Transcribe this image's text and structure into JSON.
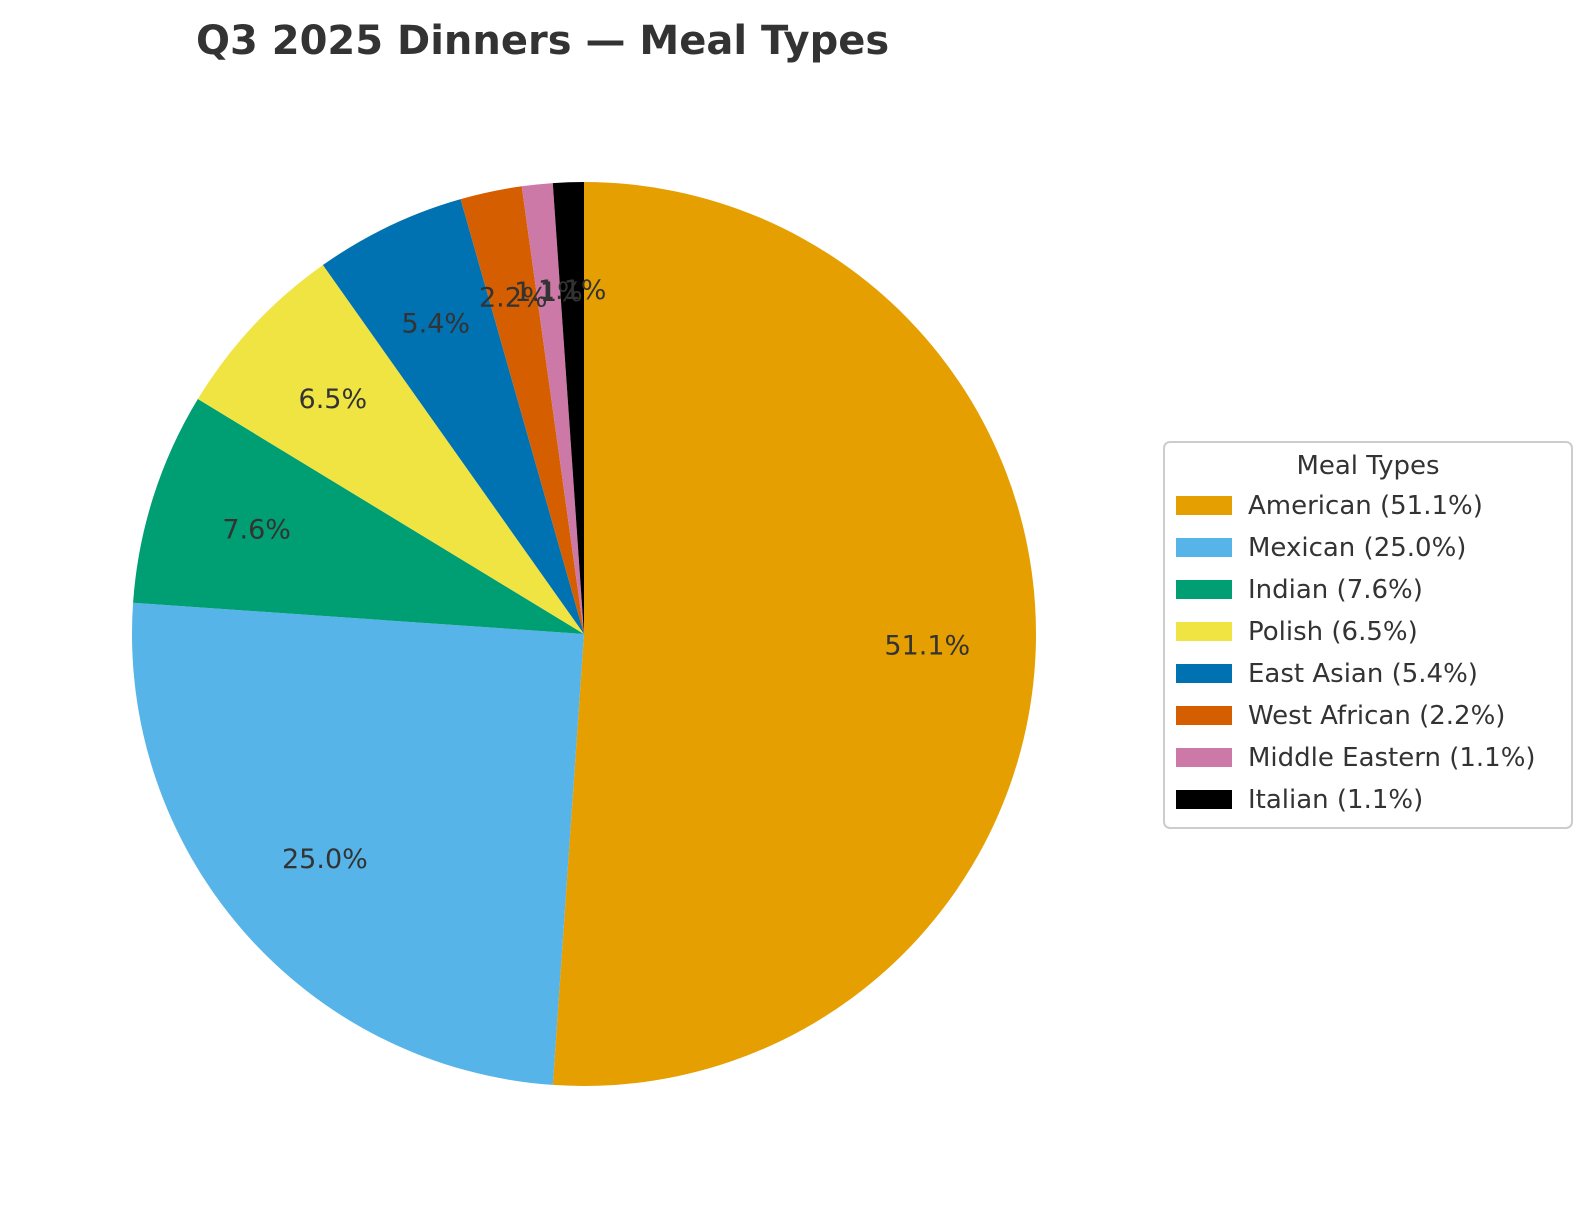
{
  "chart_data": {
    "type": "pie",
    "title": "Q3 2025 Dinners — Meal Types",
    "start_angle_deg": 90,
    "direction": "clockwise",
    "categories": [
      "American",
      "Mexican",
      "Indian",
      "Polish",
      "East Asian",
      "West African",
      "Middle Eastern",
      "Italian"
    ],
    "values": [
      51.1,
      25.0,
      7.6,
      6.5,
      5.4,
      2.2,
      1.1,
      1.1
    ],
    "slice_labels": [
      "51.1%",
      "25.0%",
      "7.6%",
      "6.5%",
      "5.4%",
      "2.2%",
      "1.1%",
      "1.1%"
    ],
    "colors": [
      "#E69F00",
      "#56B4E9",
      "#009E73",
      "#F0E442",
      "#0072B2",
      "#D55E00",
      "#CC79A7",
      "#000000"
    ],
    "legend": {
      "title": "Meal Types",
      "placement": "right",
      "entries": [
        "American (51.1%)",
        "Mexican (25.0%)",
        "Indian (7.6%)",
        "Polish (6.5%)",
        "East Asian (5.4%)",
        "West African (2.2%)",
        "Middle Eastern (1.1%)",
        "Italian (1.1%)"
      ]
    }
  }
}
